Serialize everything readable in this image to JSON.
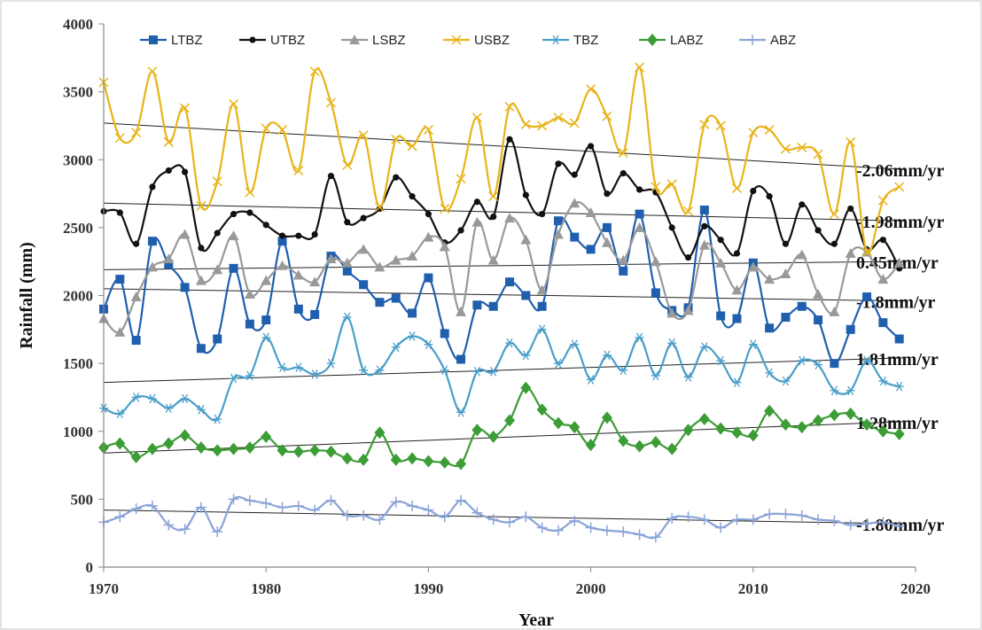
{
  "chart_data": {
    "type": "line",
    "title": "",
    "xlabel": "Year",
    "ylabel": "Rainfall (mm)",
    "xlim": [
      1970,
      2020
    ],
    "ylim": [
      0,
      4000
    ],
    "x_ticks": [
      1970,
      1980,
      1990,
      2000,
      2010,
      2020
    ],
    "y_ticks": [
      0,
      500,
      1000,
      1500,
      2000,
      2500,
      3000,
      3500,
      4000
    ],
    "grid": false,
    "legend_position": "top",
    "series": [
      {
        "name": "LTBZ",
        "color": "#1f5fae",
        "marker": "square",
        "values": [
          1900,
          2120,
          1670,
          2400,
          2230,
          2060,
          1610,
          1680,
          2200,
          1790,
          1820,
          2400,
          1900,
          1860,
          2290,
          2180,
          2080,
          1950,
          1980,
          1870,
          2130,
          1720,
          1530,
          1930,
          1920,
          2100,
          2000,
          1920,
          2550,
          2430,
          2340,
          2500,
          2180,
          2600,
          2020,
          1890,
          1910,
          2630,
          1850,
          1830,
          2240,
          1760,
          1840,
          1920,
          1820,
          1500,
          1750,
          1990,
          1800,
          1680
        ]
      },
      {
        "name": "UTBZ",
        "color": "#111111",
        "marker": "circle",
        "values": [
          2620,
          2610,
          2380,
          2800,
          2920,
          2910,
          2350,
          2460,
          2600,
          2610,
          2520,
          2440,
          2440,
          2450,
          2880,
          2540,
          2570,
          2640,
          2870,
          2730,
          2600,
          2390,
          2480,
          2690,
          2580,
          3150,
          2740,
          2600,
          2970,
          2890,
          3100,
          2750,
          2900,
          2780,
          2760,
          2500,
          2280,
          2510,
          2410,
          2310,
          2770,
          2730,
          2380,
          2670,
          2480,
          2380,
          2640,
          2340,
          2410,
          2200
        ]
      },
      {
        "name": "LSBZ",
        "color": "#999999",
        "marker": "triangle",
        "values": [
          1830,
          1730,
          1990,
          2210,
          2270,
          2450,
          2110,
          2190,
          2440,
          2010,
          2110,
          2220,
          2150,
          2100,
          2270,
          2240,
          2340,
          2210,
          2260,
          2290,
          2430,
          2360,
          1880,
          2540,
          2260,
          2570,
          2410,
          2040,
          2450,
          2680,
          2610,
          2390,
          2260,
          2500,
          2250,
          1870,
          1890,
          2370,
          2240,
          2040,
          2210,
          2120,
          2160,
          2300,
          2010,
          1880,
          2310,
          2320,
          2120,
          2240
        ]
      },
      {
        "name": "USBZ",
        "color": "#e8b41a",
        "marker": "x",
        "values": [
          3570,
          3160,
          3200,
          3650,
          3130,
          3380,
          2660,
          2840,
          3410,
          2760,
          3230,
          3220,
          2920,
          3650,
          3420,
          2960,
          3180,
          2650,
          3150,
          3100,
          3220,
          2640,
          2860,
          3310,
          2730,
          3390,
          3260,
          3250,
          3310,
          3270,
          3520,
          3320,
          3050,
          3680,
          2800,
          2820,
          2620,
          3260,
          3250,
          2790,
          3200,
          3220,
          3080,
          3090,
          3040,
          2600,
          3130,
          2320,
          2700,
          2800
        ]
      },
      {
        "name": "TBZ",
        "color": "#4a9ec9",
        "marker": "star",
        "values": [
          1170,
          1130,
          1250,
          1240,
          1170,
          1240,
          1160,
          1090,
          1390,
          1410,
          1690,
          1470,
          1470,
          1420,
          1500,
          1840,
          1450,
          1450,
          1620,
          1700,
          1640,
          1450,
          1140,
          1440,
          1440,
          1650,
          1560,
          1750,
          1500,
          1640,
          1380,
          1560,
          1450,
          1690,
          1410,
          1650,
          1400,
          1620,
          1520,
          1360,
          1640,
          1430,
          1370,
          1520,
          1490,
          1300,
          1300,
          1520,
          1370,
          1330
        ]
      },
      {
        "name": "LABZ",
        "color": "#3c9c35",
        "marker": "diamond",
        "values": [
          880,
          910,
          810,
          870,
          910,
          970,
          880,
          860,
          870,
          880,
          960,
          860,
          850,
          860,
          850,
          800,
          790,
          990,
          790,
          800,
          780,
          770,
          760,
          1010,
          960,
          1080,
          1320,
          1160,
          1060,
          1030,
          900,
          1100,
          930,
          890,
          920,
          870,
          1010,
          1090,
          1020,
          990,
          970,
          1150,
          1050,
          1030,
          1080,
          1120,
          1130,
          1050,
          1000,
          980
        ]
      },
      {
        "name": "ABZ",
        "color": "#8aa4d8",
        "marker": "plus",
        "values": [
          330,
          370,
          430,
          450,
          310,
          280,
          440,
          260,
          500,
          490,
          470,
          440,
          450,
          420,
          490,
          380,
          380,
          350,
          480,
          450,
          420,
          370,
          490,
          400,
          350,
          330,
          370,
          290,
          270,
          340,
          290,
          270,
          260,
          240,
          220,
          360,
          370,
          350,
          290,
          350,
          350,
          390,
          390,
          380,
          350,
          340,
          310,
          320,
          330,
          300
        ]
      }
    ],
    "trend_lines": [
      {
        "label": "-2.06mm/yr",
        "from": [
          1970,
          3270
        ],
        "to": [
          2019,
          2930
        ]
      },
      {
        "label": "-1.98mm/yr",
        "from": [
          1970,
          2680
        ],
        "to": [
          2019,
          2550
        ]
      },
      {
        "label": "0.45mm/yr",
        "from": [
          1970,
          2190
        ],
        "to": [
          2019,
          2250
        ]
      },
      {
        "label": "-1.8mm/yr",
        "from": [
          1970,
          2050
        ],
        "to": [
          2019,
          1960
        ]
      },
      {
        "label": "1.81mm/yr",
        "from": [
          1970,
          1360
        ],
        "to": [
          2019,
          1540
        ]
      },
      {
        "label": "1.28mm/yr",
        "from": [
          1970,
          840
        ],
        "to": [
          2019,
          1070
        ]
      },
      {
        "label": "-1.80mm/yr",
        "from": [
          1970,
          420
        ],
        "to": [
          2019,
          320
        ]
      }
    ]
  }
}
